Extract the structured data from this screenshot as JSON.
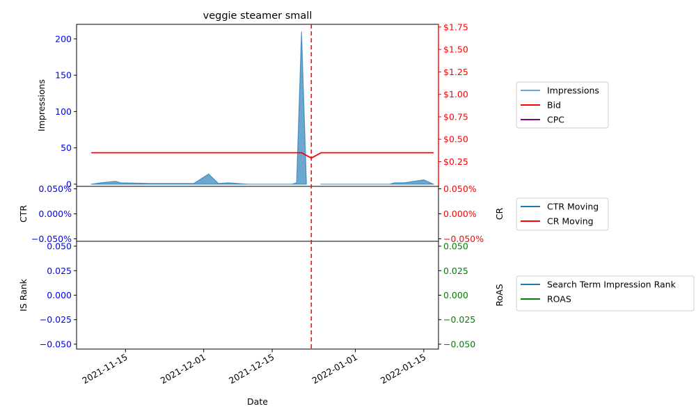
{
  "chart_data": {
    "title": "veggie steamer small",
    "xlabel": "Date",
    "x_ticks": [
      "2021-11-15",
      "2021-12-01",
      "2021-12-15",
      "2022-01-01",
      "2022-01-15"
    ],
    "x_range": [
      "2021-11-05",
      "2022-01-18"
    ],
    "marker_date": "2021-12-23",
    "marker_color": "#ff0000",
    "panels": [
      {
        "type": "area+line",
        "left_label": "Impressions",
        "left_color": "#0000ff",
        "left_ylim": [
          -3,
          220
        ],
        "left_ticks": [
          {
            "v": 0,
            "label": "0"
          },
          {
            "v": 50,
            "label": "50"
          },
          {
            "v": 100,
            "label": "100"
          },
          {
            "v": 150,
            "label": "150"
          },
          {
            "v": 200,
            "label": "200"
          }
        ],
        "right_color": "#ff0000",
        "right_ylim": [
          -0.025,
          1.78
        ],
        "right_ticks": [
          {
            "v": 0.25,
            "label": "$0.25"
          },
          {
            "v": 0.5,
            "label": "$0.50"
          },
          {
            "v": 0.75,
            "label": "$0.75"
          },
          {
            "v": 1.0,
            "label": "$1.00"
          },
          {
            "v": 1.25,
            "label": "$1.25"
          },
          {
            "v": 1.5,
            "label": "$1.50"
          },
          {
            "v": 1.75,
            "label": "$1.75"
          }
        ],
        "series": [
          {
            "name": "Impressions",
            "axis": "left",
            "kind": "area",
            "color": "#1f77b4",
            "points": [
              [
                "2021-11-08",
                0
              ],
              [
                "2021-11-10",
                2
              ],
              [
                "2021-11-13",
                4
              ],
              [
                "2021-11-14",
                2
              ],
              [
                "2021-11-20",
                1
              ],
              [
                "2021-11-29",
                1
              ],
              [
                "2021-12-02",
                14
              ],
              [
                "2021-12-04",
                1
              ],
              [
                "2021-12-06",
                2
              ],
              [
                "2021-12-10",
                0
              ],
              [
                "2021-12-19",
                0
              ],
              [
                "2021-12-20",
                2
              ],
              [
                "2021-12-21",
                210
              ],
              [
                "2021-12-22",
                0
              ]
            ]
          },
          {
            "name": "Impressions",
            "axis": "left",
            "kind": "area",
            "color": "#1f77b4",
            "points": [
              [
                "2021-12-25",
                0
              ],
              [
                "2022-01-08",
                0
              ],
              [
                "2022-01-09",
                2
              ],
              [
                "2022-01-11",
                2
              ],
              [
                "2022-01-15",
                6
              ],
              [
                "2022-01-17",
                0
              ]
            ]
          },
          {
            "name": "Bid",
            "axis": "right",
            "kind": "line",
            "color": "#ff0000",
            "points": [
              [
                "2021-11-08",
                0.35
              ],
              [
                "2021-12-21",
                0.35
              ],
              [
                "2021-12-23",
                0.29
              ],
              [
                "2021-12-25",
                0.35
              ],
              [
                "2022-01-17",
                0.35
              ]
            ]
          },
          {
            "name": "CPC",
            "axis": "right",
            "kind": "line",
            "color": "#800080",
            "points": []
          }
        ],
        "legend": [
          {
            "label": "Impressions",
            "color": "#6aa5d4"
          },
          {
            "label": "Bid",
            "color": "#ff0000"
          },
          {
            "label": "CPC",
            "color": "#800080"
          }
        ]
      },
      {
        "type": "line",
        "left_label": "CTR",
        "left_color": "#0000ff",
        "left_ticks": [
          {
            "v": 0.05,
            "label": "0.050%"
          },
          {
            "v": 0,
            "label": "0.000%"
          },
          {
            "v": -0.05,
            "label": "−0.050%"
          }
        ],
        "right_label": "CR",
        "right_color": "#ff0000",
        "right_ticks": [
          {
            "v": 0.05,
            "label": "0.050%"
          },
          {
            "v": 0,
            "label": "0.000%"
          },
          {
            "v": -0.05,
            "label": "−0.050%"
          }
        ],
        "ylim": [
          -0.055,
          0.055
        ],
        "series": [
          {
            "name": "CTR Moving",
            "color": "#1f77b4",
            "points": []
          },
          {
            "name": "CR Moving",
            "color": "#ff0000",
            "points": []
          }
        ],
        "legend": [
          {
            "label": "CTR Moving",
            "color": "#1f77b4"
          },
          {
            "label": "CR Moving",
            "color": "#ff0000"
          }
        ]
      },
      {
        "type": "line",
        "left_label": "IS Rank",
        "left_color": "#0000ff",
        "left_ticks": [
          {
            "v": 0.05,
            "label": "0.050"
          },
          {
            "v": 0.025,
            "label": "0.025"
          },
          {
            "v": 0,
            "label": "0.000"
          },
          {
            "v": -0.025,
            "label": "−0.025"
          },
          {
            "v": -0.05,
            "label": "−0.050"
          }
        ],
        "right_label": "RoAS",
        "right_color": "#008000",
        "right_ticks": [
          {
            "v": 0.05,
            "label": "0.050"
          },
          {
            "v": 0.025,
            "label": "0.025"
          },
          {
            "v": 0,
            "label": "0.000"
          },
          {
            "v": -0.025,
            "label": "−0.025"
          },
          {
            "v": -0.05,
            "label": "−0.050"
          }
        ],
        "ylim": [
          -0.055,
          0.055
        ],
        "series": [
          {
            "name": "Search Term Impression Rank",
            "color": "#1f77b4",
            "points": []
          },
          {
            "name": "ROAS",
            "color": "#008000",
            "points": []
          }
        ],
        "legend": [
          {
            "label": "Search Term Impression Rank",
            "color": "#1f77b4"
          },
          {
            "label": "ROAS",
            "color": "#008000"
          }
        ]
      }
    ]
  }
}
